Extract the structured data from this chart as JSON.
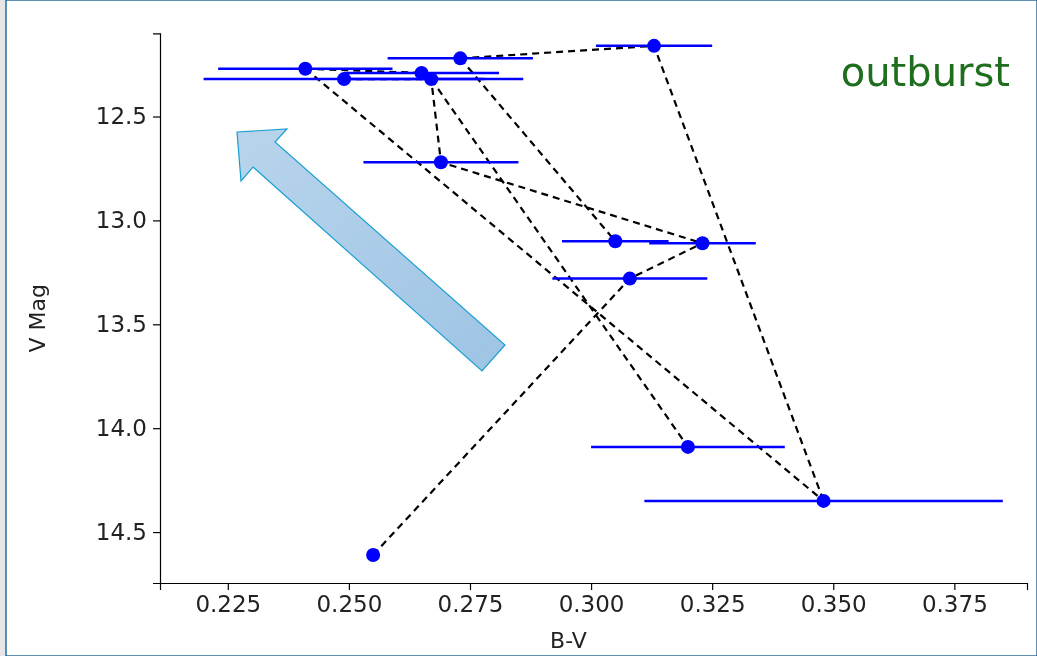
{
  "chart_data": {
    "type": "scatter",
    "xlabel": "B-V",
    "ylabel": "V Mag",
    "xlim": [
      0.211,
      0.39
    ],
    "ylim": [
      14.745,
      12.1
    ],
    "xticks": [
      0.225,
      {
        "value": 0.25,
        "label": "0.250"
      },
      0.275,
      {
        "value": 0.3,
        "label": "0.300"
      },
      0.325,
      {
        "value": 0.35,
        "label": "0.350"
      },
      0.375
    ],
    "yticks": [
      12.5,
      {
        "value": 13,
        "label": "13.0"
      },
      13.5,
      {
        "value": 14,
        "label": "14.0"
      },
      14.5
    ],
    "annotations": [
      "outburst"
    ],
    "series": [
      {
        "type": "scatter",
        "color": "#0000ff",
        "marker": "circle",
        "x": [
          0.241,
          0.249,
          0.265,
          0.267,
          0.273,
          0.269,
          0.313,
          0.305,
          0.323,
          0.308,
          0.32,
          0.348,
          0.255
        ],
        "values": [
          12.27,
          12.32,
          12.29,
          12.32,
          12.22,
          12.72,
          12.16,
          13.1,
          13.11,
          13.28,
          14.09,
          14.35,
          14.61
        ],
        "xerrors": [
          0.018,
          0.029,
          0.016,
          0.019,
          0.015,
          0.016,
          0.012,
          0.011,
          0.011,
          0.016,
          0.02,
          0.037,
          null
        ]
      },
      {
        "type": "line",
        "color": "#000000",
        "line_style": "dashed",
        "marker": "none",
        "x": [
          0.255,
          0.308,
          0.323
        ],
        "values": [
          14.61,
          13.28,
          13.11
        ]
      },
      {
        "type": "line",
        "color": "#000000",
        "line_style": "dashed",
        "marker": "none",
        "x": [
          0.249,
          0.267,
          0.269,
          0.323
        ],
        "values": [
          12.32,
          12.32,
          12.72,
          13.11
        ]
      },
      {
        "type": "line",
        "color": "#000000",
        "line_style": "dashed",
        "marker": "none",
        "x": [
          0.267,
          0.32
        ],
        "values": [
          12.32,
          14.09
        ]
      },
      {
        "type": "line",
        "color": "#000000",
        "line_style": "dashed",
        "marker": "none",
        "x": [
          0.241,
          0.265
        ],
        "values": [
          12.27,
          12.29
        ]
      },
      {
        "type": "line",
        "color": "#000000",
        "line_style": "dashed",
        "marker": "none",
        "x": [
          0.241,
          0.348
        ],
        "values": [
          12.27,
          14.35
        ]
      },
      {
        "type": "line",
        "color": "#000000",
        "line_style": "dashed",
        "marker": "none",
        "x": [
          0.273,
          0.313,
          0.348
        ],
        "values": [
          12.22,
          12.16,
          14.35
        ]
      },
      {
        "type": "line",
        "color": "#000000",
        "line_style": "dashed",
        "marker": "none",
        "x": [
          0.273,
          0.305
        ],
        "values": [
          12.22,
          13.1
        ]
      }
    ]
  }
}
